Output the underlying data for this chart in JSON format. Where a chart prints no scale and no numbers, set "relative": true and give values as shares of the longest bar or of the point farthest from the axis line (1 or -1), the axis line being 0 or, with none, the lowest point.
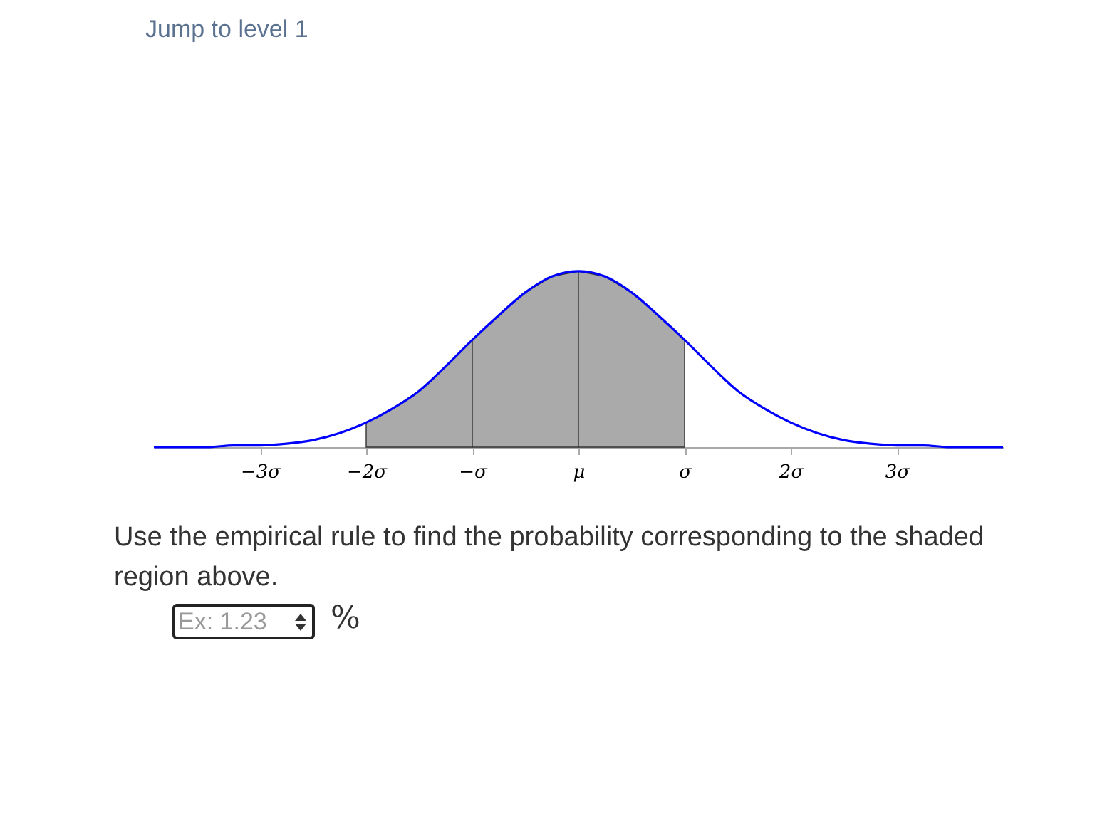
{
  "chart_data": {
    "type": "line",
    "relative": true,
    "xlim": [
      -4,
      4
    ],
    "xticks": [
      {
        "value": -3,
        "label": "−3σ"
      },
      {
        "value": -2,
        "label": "−2σ"
      },
      {
        "value": -1,
        "label": "−σ"
      },
      {
        "value": 0,
        "label": "μ"
      },
      {
        "value": 1,
        "label": "σ"
      },
      {
        "value": 2,
        "label": "2σ"
      },
      {
        "value": 3,
        "label": "3σ"
      }
    ],
    "series": [
      {
        "type": "area",
        "color": "#aaaaaa",
        "x": [
          -2,
          -1.75,
          -1.5,
          -1.25,
          -1
        ],
        "values": [
          0.14,
          0.22,
          0.32,
          0.46,
          0.61
        ]
      },
      {
        "type": "area",
        "color": "#aaaaaa",
        "x": [
          -1,
          -0.75,
          -0.5,
          -0.25,
          0
        ],
        "values": [
          0.61,
          0.75,
          0.88,
          0.97,
          1
        ]
      },
      {
        "type": "area",
        "color": "#aaaaaa",
        "x": [
          0,
          0.25,
          0.5,
          0.75,
          1
        ],
        "values": [
          1,
          0.97,
          0.88,
          0.75,
          0.61
        ]
      },
      {
        "color": "#0000ff",
        "x": [
          -4,
          -3.75,
          -3.5,
          -3.25,
          -3,
          -2.75,
          -2.5,
          -2.25,
          -2,
          -1.75,
          -1.5,
          -1.25,
          -1,
          -0.75,
          -0.5,
          -0.25,
          0,
          0.25,
          0.5,
          0.75,
          1,
          1.25,
          1.5,
          1.75,
          2,
          2.25,
          2.5,
          2.75,
          3,
          3.25,
          3.5,
          3.75,
          4
        ],
        "values": [
          0,
          0,
          0,
          0.01,
          0.01,
          0.02,
          0.04,
          0.08,
          0.14,
          0.22,
          0.32,
          0.46,
          0.61,
          0.75,
          0.88,
          0.97,
          1,
          0.97,
          0.88,
          0.75,
          0.61,
          0.46,
          0.32,
          0.22,
          0.14,
          0.08,
          0.04,
          0.02,
          0.01,
          0.01,
          0,
          0,
          0
        ]
      }
    ],
    "annotations": [
      "Jump to level 1",
      "Use the empirical rule to find the probability corresponding to the shaded region above.",
      "Ex: 1.23",
      "%"
    ]
  }
}
